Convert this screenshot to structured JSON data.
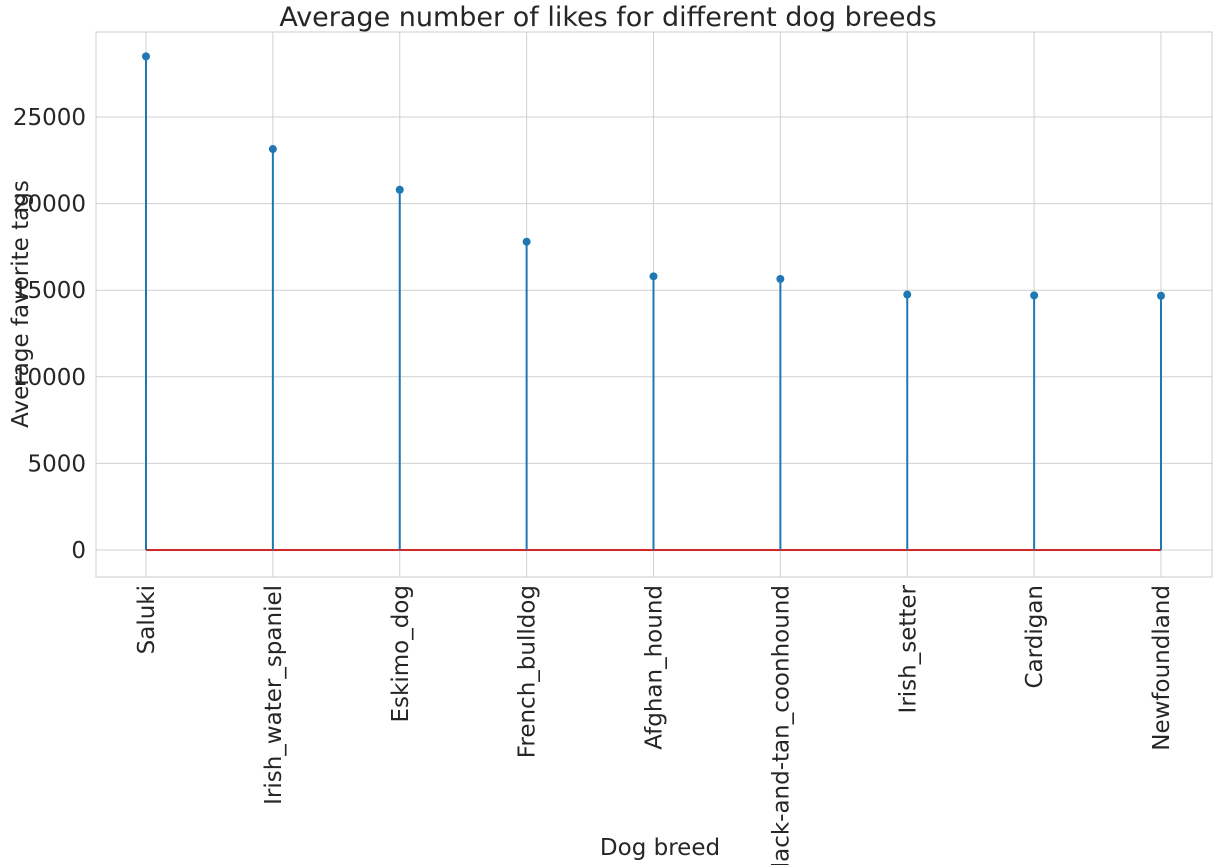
{
  "chart_data": {
    "type": "stem",
    "title": "Average number of likes for different dog breeds",
    "xlabel": "Dog breed",
    "ylabel": "Average favorite tags",
    "categories": [
      "Saluki",
      "Irish_water_spaniel",
      "Eskimo_dog",
      "French_bulldog",
      "Afghan_hound",
      "black-and-tan_coonhound",
      "Irish_setter",
      "Cardigan",
      "Newfoundland"
    ],
    "values": [
      28500,
      23150,
      20800,
      17800,
      15800,
      15650,
      14750,
      14700,
      14680
    ],
    "ylim": [
      -1500,
      30000
    ],
    "yticks": [
      0,
      5000,
      10000,
      15000,
      20000,
      25000
    ],
    "grid": true,
    "colors": {
      "stem": "#1f77b4",
      "marker": "#1f77b4",
      "baseline": "#d62728"
    }
  }
}
